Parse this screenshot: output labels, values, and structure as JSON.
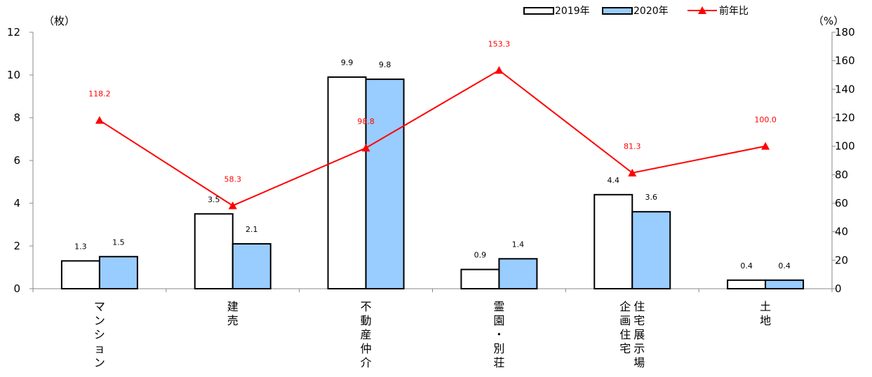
{
  "chart_data": {
    "type": "bar",
    "categories": [
      [
        "マンション"
      ],
      [
        "建売"
      ],
      [
        "不動産仲介"
      ],
      [
        "霊園・別荘"
      ],
      [
        "住宅展示場",
        "企画住宅"
      ],
      [
        "土地"
      ]
    ],
    "series": [
      {
        "name": "2019年",
        "type": "bar",
        "axis": "left",
        "color": "#ffffff",
        "values": [
          1.3,
          3.5,
          9.9,
          0.9,
          4.4,
          0.4
        ],
        "labels": [
          "1.3",
          "3.5",
          "9.9",
          "0.9",
          "4.4",
          "0.4"
        ]
      },
      {
        "name": "2020年",
        "type": "bar",
        "axis": "left",
        "color": "#99ccff",
        "values": [
          1.5,
          2.1,
          9.8,
          1.4,
          3.6,
          0.4
        ],
        "labels": [
          "1.5",
          "2.1",
          "9.8",
          "1.4",
          "3.6",
          "0.4"
        ]
      },
      {
        "name": "前年比",
        "type": "line",
        "axis": "right",
        "color": "#ff0000",
        "values": [
          118.2,
          58.3,
          98.8,
          153.3,
          81.3,
          100.0
        ],
        "labels": [
          "118.2",
          "58.3",
          "98.8",
          "153.3",
          "81.3",
          "100.0"
        ]
      }
    ],
    "y_left": {
      "unit": "（枚）",
      "range": [
        0,
        12
      ],
      "ticks": [
        0,
        2,
        4,
        6,
        8,
        10,
        12
      ]
    },
    "y_right": {
      "unit": "（%）",
      "range": [
        0,
        180
      ],
      "ticks": [
        0,
        20,
        40,
        60,
        80,
        100,
        120,
        140,
        160,
        180
      ]
    },
    "legend": {
      "placement": "top-right"
    },
    "grid": false
  }
}
